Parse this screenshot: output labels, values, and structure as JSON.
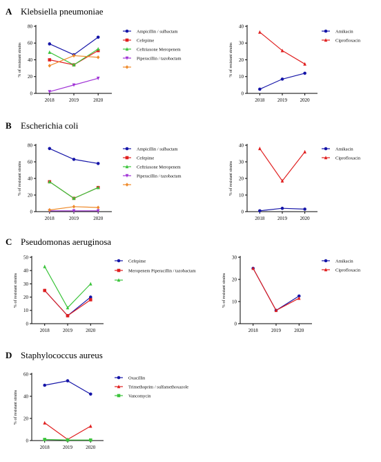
{
  "colors": {
    "blue": "#1515a8",
    "red": "#e01f1f",
    "green": "#3cc43c",
    "purple": "#a033d6",
    "orange": "#ef8a2a",
    "axis": "#000000"
  },
  "chart_data": [
    {
      "panel": "A",
      "title": "Klebsiella pneumoniae",
      "type": "line",
      "categories": [
        "2018",
        "2019",
        "2020"
      ],
      "ylabel": "% of resistant strains",
      "ylim": [
        0,
        80
      ],
      "yticks": [
        0,
        20,
        40,
        60,
        80
      ],
      "series": [
        {
          "name": "Ampicillin / sulbactam",
          "color": "blue",
          "marker": "circle",
          "values": [
            59,
            46,
            67
          ]
        },
        {
          "name": "Cefepime",
          "color": "red",
          "marker": "square",
          "values": [
            40,
            34,
            51
          ]
        },
        {
          "name": "Ceftriaxone Meropenem",
          "color": "green",
          "marker": "triangle",
          "values": [
            49,
            34,
            53
          ]
        },
        {
          "name": "Piperacillin / tazobactam",
          "color": "purple",
          "marker": "triangle-down",
          "values": [
            2,
            10,
            18
          ]
        },
        {
          "name": "",
          "color": "orange",
          "marker": "diamond",
          "values": [
            33,
            45,
            43
          ]
        }
      ]
    },
    {
      "panel": "A",
      "title": "",
      "type": "line",
      "categories": [
        "2018",
        "2019",
        "2020"
      ],
      "ylabel": "% of resistant strains",
      "ylim": [
        0,
        40
      ],
      "yticks": [
        0,
        10,
        20,
        30,
        40
      ],
      "series": [
        {
          "name": "Amikacin",
          "color": "blue",
          "marker": "circle",
          "values": [
            2.5,
            8.5,
            12
          ]
        },
        {
          "name": "Ciprofloxacin",
          "color": "red",
          "marker": "triangle",
          "values": [
            36.5,
            25.5,
            17.5
          ]
        }
      ]
    },
    {
      "panel": "B",
      "title": "Escherichia coli",
      "type": "line",
      "categories": [
        "2018",
        "2019",
        "2020"
      ],
      "ylabel": "% of resistant strains",
      "ylim": [
        0,
        80
      ],
      "yticks": [
        0,
        20,
        40,
        60,
        80
      ],
      "series": [
        {
          "name": "Ampicillin / sulbactam",
          "color": "blue",
          "marker": "circle",
          "values": [
            76,
            63,
            58
          ]
        },
        {
          "name": "Cefepime",
          "color": "red",
          "marker": "square",
          "values": [
            36,
            16,
            29
          ]
        },
        {
          "name": "Ceftriaxone Meropenem",
          "color": "green",
          "marker": "triangle",
          "values": [
            36,
            16,
            29
          ]
        },
        {
          "name": "Piperacillin / tazobactam",
          "color": "purple",
          "marker": "triangle-down",
          "values": [
            1,
            1,
            1
          ]
        },
        {
          "name": "",
          "color": "orange",
          "marker": "diamond",
          "values": [
            2,
            6,
            5
          ]
        }
      ]
    },
    {
      "panel": "B",
      "title": "",
      "type": "line",
      "categories": [
        "2018",
        "2019",
        "2020"
      ],
      "ylabel": "% of resistant strains",
      "ylim": [
        0,
        40
      ],
      "yticks": [
        0,
        10,
        20,
        30,
        40
      ],
      "series": [
        {
          "name": "Amikacin",
          "color": "blue",
          "marker": "circle",
          "values": [
            0.5,
            2,
            1.5
          ]
        },
        {
          "name": "Ciprofloxacin",
          "color": "red",
          "marker": "triangle",
          "values": [
            38,
            18.5,
            36
          ]
        }
      ]
    },
    {
      "panel": "C",
      "title": "Pseudomonas aeruginosa",
      "type": "line",
      "categories": [
        "2018",
        "2019",
        "2020"
      ],
      "ylabel": "% of resistant strains",
      "ylim": [
        0,
        50
      ],
      "yticks": [
        0,
        10,
        20,
        30,
        40,
        50
      ],
      "series": [
        {
          "name": "Cefepime",
          "color": "blue",
          "marker": "circle",
          "values": [
            25,
            6,
            20
          ]
        },
        {
          "name": "Meropenem Piperacillin / tazobactam",
          "color": "red",
          "marker": "square",
          "values": [
            25,
            6,
            18
          ]
        },
        {
          "name": "",
          "color": "green",
          "marker": "triangle",
          "values": [
            43,
            12,
            30
          ]
        }
      ]
    },
    {
      "panel": "C",
      "title": "",
      "type": "line",
      "categories": [
        "2018",
        "2019",
        "2020"
      ],
      "ylabel": "% of resistant strains",
      "ylim": [
        0,
        30
      ],
      "yticks": [
        0,
        10,
        20,
        30
      ],
      "series": [
        {
          "name": "Amikacin",
          "color": "blue",
          "marker": "circle",
          "values": [
            25,
            6,
            12.5
          ]
        },
        {
          "name": "Ciprofloxacin",
          "color": "red",
          "marker": "triangle",
          "values": [
            25,
            6,
            11.5
          ]
        }
      ]
    },
    {
      "panel": "D",
      "title": "Staphylococcus aureus",
      "type": "line",
      "categories": [
        "2018",
        "2019",
        "2020"
      ],
      "ylabel": "% of resistant strains",
      "ylim": [
        0,
        60
      ],
      "yticks": [
        0,
        20,
        40,
        60
      ],
      "series": [
        {
          "name": "Oxacillin",
          "color": "blue",
          "marker": "circle",
          "values": [
            50,
            54,
            42
          ]
        },
        {
          "name": "Trimethoprim / sulfamethoxazole",
          "color": "red",
          "marker": "triangle",
          "values": [
            16,
            1,
            13
          ]
        },
        {
          "name": "Vancomycin",
          "color": "green",
          "marker": "square",
          "values": [
            1,
            0.5,
            0.5
          ]
        }
      ]
    }
  ]
}
